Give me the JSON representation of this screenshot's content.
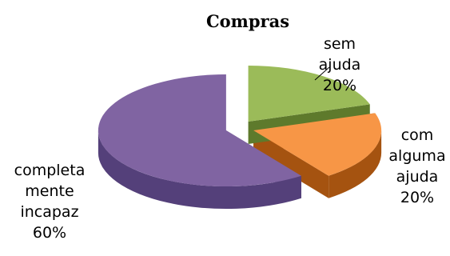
{
  "chart_data": {
    "type": "pie",
    "title": "Compras",
    "slices": [
      {
        "name_lines": [
          "sem",
          "ajuda"
        ],
        "label": "sem ajuda",
        "value": 20,
        "pct_label": "20%",
        "color": "#9bbb59",
        "side": "#5e7a2c"
      },
      {
        "name_lines": [
          "com",
          "alguma",
          "ajuda"
        ],
        "label": "com alguma ajuda",
        "value": 20,
        "pct_label": "20%",
        "color": "#f79646",
        "side": "#a55310"
      },
      {
        "name_lines": [
          "completa",
          "mente",
          "incapaz"
        ],
        "label": "completamente incapaz",
        "value": 60,
        "pct_label": "60%",
        "color": "#8064a2",
        "side": "#54407a"
      }
    ],
    "legend": "none",
    "style": "3d-exploded"
  }
}
